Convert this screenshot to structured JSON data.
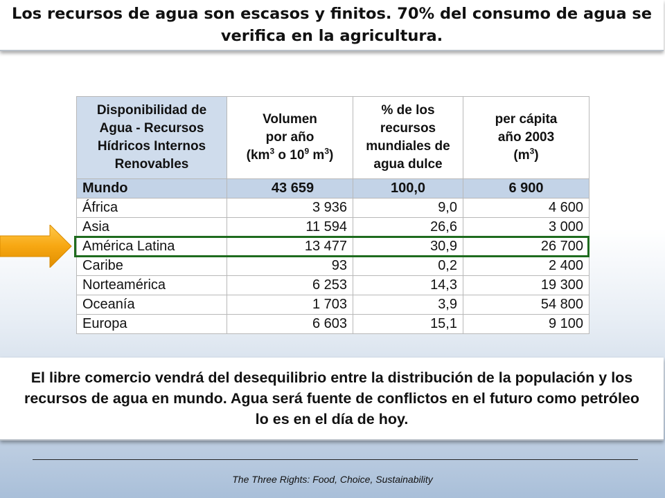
{
  "title": "Los recursos de agua son escasos y finitos. 70% del consumo de agua se verifica en la agricultura.",
  "table": {
    "header": {
      "col0": "Disponibilidad de Agua - Recursos Hídricos Internos Renovables",
      "col1_line1": "Volumen",
      "col1_line2": "por año",
      "col1_unit_prefix": "(km",
      "col1_sup1": "3",
      "col1_unit_mid": " o 10",
      "col1_sup2": "9",
      "col1_unit_m": " m",
      "col1_sup3": "3",
      "col1_unit_suffix": ")",
      "col2": "% de los recursos mundiales de agua dulce",
      "col3_line1": "per cápita",
      "col3_line2": "año 2003",
      "col3_unit_prefix": "(m",
      "col3_sup": "3",
      "col3_unit_suffix": ")"
    },
    "world": {
      "name": "Mundo",
      "volume": "43 659",
      "percent": "100,0",
      "per_capita": "6 900"
    },
    "rows": [
      {
        "name": "África",
        "volume": "3 936",
        "percent": "9,0",
        "per_capita": "4 600"
      },
      {
        "name": "Asia",
        "volume": "11 594",
        "percent": "26,6",
        "per_capita": "3 000"
      },
      {
        "name": "América Latina",
        "volume": "13 477",
        "percent": "30,9",
        "per_capita": "26 700"
      },
      {
        "name": "Caribe",
        "volume": "93",
        "percent": "0,2",
        "per_capita": "2 400"
      },
      {
        "name": "Norteamérica",
        "volume": "6 253",
        "percent": "14,3",
        "per_capita": "19 300"
      },
      {
        "name": "Oceanía",
        "volume": "1 703",
        "percent": "3,9",
        "per_capita": "54 800"
      },
      {
        "name": "Europa",
        "volume": "6 603",
        "percent": "15,1",
        "per_capita": "9 100"
      }
    ],
    "highlighted_row": "América Latina"
  },
  "colors": {
    "arrow_fill": "#f7a712",
    "highlight_border": "#1e6b1e",
    "header_bg": "#cfdcec",
    "world_bg": "#c3d3e7"
  },
  "arrow_icon": "right-arrow-icon",
  "bottom_text": "El libre comercio vendrá del desequilibrio entre la distribución de la populación y los recursos de agua en mundo. Agua será fuente de conflictos en el futuro como petróleo lo es en el día de hoy.",
  "footer": "The Three Rights: Food, Choice, Sustainability"
}
